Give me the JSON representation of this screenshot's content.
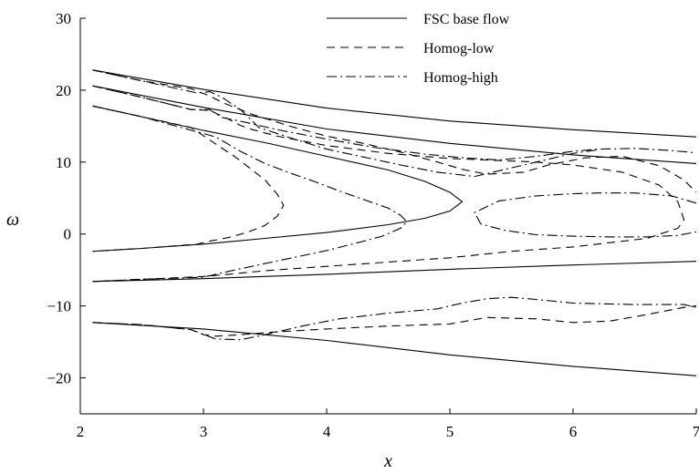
{
  "chart_data": {
    "type": "line",
    "xlabel": "x",
    "ylabel": "ω",
    "xlim": [
      2,
      7
    ],
    "ylim": [
      -25,
      30
    ],
    "xticks": [
      2,
      3,
      4,
      5,
      6,
      7
    ],
    "yticks": [
      -20,
      -10,
      0,
      10,
      20,
      30
    ],
    "grid": false,
    "legend_position": "top-right",
    "series": [
      {
        "name": "FSC base flow",
        "style": "solid",
        "curves": [
          {
            "x": [
              2.1,
              3.0,
              4.0,
              5.0,
              6.0,
              7.0
            ],
            "y": [
              22.8,
              20.1,
              17.5,
              15.7,
              14.5,
              13.5
            ]
          },
          {
            "x": [
              2.1,
              3.0,
              4.0,
              5.0,
              6.0,
              7.0
            ],
            "y": [
              20.6,
              17.6,
              14.6,
              12.6,
              11.0,
              9.8
            ]
          },
          {
            "x": [
              2.1,
              2.5,
              3.0,
              3.5,
              4.0,
              4.5,
              4.8,
              5.0,
              5.1,
              5.0,
              4.8,
              4.5,
              4.0,
              3.5,
              3.0,
              2.5,
              2.1
            ],
            "y": [
              17.8,
              16.3,
              14.4,
              12.7,
              10.8,
              8.9,
              7.3,
              5.8,
              4.5,
              3.2,
              2.2,
              1.3,
              0.2,
              -0.6,
              -1.4,
              -2.0,
              -2.4
            ]
          },
          {
            "x": [
              2.1,
              3.0,
              4.0,
              5.0,
              6.0,
              7.0
            ],
            "y": [
              -6.6,
              -6.2,
              -5.6,
              -4.9,
              -4.3,
              -3.8
            ]
          },
          {
            "x": [
              2.1,
              3.0,
              4.0,
              5.0,
              6.0,
              7.0
            ],
            "y": [
              -12.3,
              -13.2,
              -14.8,
              -16.8,
              -18.4,
              -19.7
            ]
          }
        ]
      },
      {
        "name": "Homog-low",
        "style": "dashed",
        "curves": [
          {
            "x": [
              2.1,
              2.5,
              2.9,
              3.1,
              3.25,
              3.35,
              3.5,
              3.6,
              3.65,
              3.6,
              3.5,
              3.35,
              3.2,
              3.05,
              2.95,
              2.5,
              2.1
            ],
            "y": [
              17.8,
              16.3,
              14.8,
              12.5,
              10.8,
              9.5,
              7.5,
              5.5,
              4.0,
              2.5,
              1.2,
              0.2,
              -0.5,
              -1.0,
              -1.4,
              -2.0,
              -2.4
            ]
          },
          {
            "x": [
              2.1,
              2.5,
              2.9,
              3.05,
              3.2,
              3.3,
              3.4,
              3.6,
              4.0,
              4.5,
              5.0,
              5.3,
              5.7,
              6.0,
              6.4,
              6.7,
              6.85,
              6.9,
              6.85,
              6.6,
              6.0,
              5.5,
              5.0,
              4.5,
              4.0,
              3.5,
              3.2,
              3.0,
              2.5,
              2.1
            ],
            "y": [
              20.6,
              19.0,
              17.3,
              17.2,
              16.0,
              15.1,
              14.5,
              13.6,
              12.3,
              11.2,
              10.5,
              10.3,
              10.0,
              9.6,
              8.6,
              6.8,
              4.5,
              2.0,
              0.8,
              -0.6,
              -1.8,
              -2.4,
              -3.3,
              -3.9,
              -4.5,
              -5.1,
              -5.6,
              -5.9,
              -6.3,
              -6.6
            ]
          },
          {
            "x": [
              2.1,
              2.5,
              2.9,
              3.05,
              3.15,
              3.4,
              3.7,
              4.0,
              4.3,
              4.6,
              4.9,
              5.1,
              5.3,
              5.6,
              5.8,
              6.1,
              6.4,
              6.7,
              6.9,
              7.0
            ],
            "y": [
              22.8,
              21.3,
              20.2,
              19.2,
              18.3,
              16.6,
              15.0,
              13.6,
              12.6,
              11.4,
              10.0,
              9.0,
              8.3,
              8.6,
              9.6,
              10.6,
              10.8,
              9.5,
              7.5,
              5.8
            ]
          },
          {
            "x": [
              2.1,
              2.5,
              2.9,
              3.0,
              3.1,
              3.3,
              3.6,
              4.0,
              4.5,
              5.0,
              5.3,
              5.7,
              6.0,
              6.3,
              6.6,
              6.9,
              7.0
            ],
            "y": [
              -12.3,
              -12.6,
              -13.3,
              -14.0,
              -14.2,
              -14.0,
              -13.6,
              -13.2,
              -12.8,
              -12.5,
              -11.6,
              -11.8,
              -12.3,
              -12.1,
              -11.2,
              -10.2,
              -10.0
            ]
          }
        ]
      },
      {
        "name": "Homog-high",
        "style": "dash-dot",
        "curves": [
          {
            "x": [
              2.1,
              2.5,
              2.95,
              3.1,
              3.3,
              3.5,
              3.7,
              3.9,
              4.1,
              4.3,
              4.5,
              4.6,
              4.65,
              4.6,
              4.45,
              4.3,
              4.0,
              3.5,
              3.2,
              3.0,
              2.5,
              2.1
            ],
            "y": [
              17.8,
              16.3,
              14.2,
              13.5,
              11.5,
              9.8,
              8.5,
              7.3,
              6.0,
              4.8,
              3.6,
              2.6,
              1.7,
              0.8,
              -0.3,
              -1.0,
              -2.3,
              -4.1,
              -5.2,
              -6.0,
              -6.3,
              -6.6
            ]
          },
          {
            "x": [
              2.1,
              2.5,
              2.9,
              3.05,
              3.15,
              3.35,
              3.6,
              4.0,
              4.4,
              4.8,
              5.1,
              5.4,
              5.7,
              6.0,
              6.2,
              6.5,
              6.8,
              7.0
            ],
            "y": [
              20.6,
              19.0,
              17.3,
              17.3,
              16.2,
              15.5,
              14.5,
              13.2,
              12.0,
              11.1,
              10.6,
              10.3,
              10.8,
              11.5,
              11.8,
              11.9,
              11.6,
              11.3
            ]
          },
          {
            "x": [
              2.1,
              2.5,
              2.95,
              3.05,
              3.15,
              3.3,
              3.45,
              3.7,
              4.0,
              4.3,
              4.6,
              4.9,
              5.2,
              5.6,
              6.0,
              6.2
            ],
            "y": [
              22.8,
              21.3,
              19.6,
              19.8,
              19.0,
              17.3,
              14.8,
              13.4,
              11.8,
              10.7,
              9.6,
              8.6,
              8.0,
              9.6,
              11.2,
              11.7
            ]
          },
          {
            "x": [
              7.0,
              6.8,
              6.5,
              6.2,
              6.0,
              5.7,
              5.4,
              5.2,
              5.25,
              5.45,
              5.7,
              6.0,
              6.3,
              6.6,
              6.85,
              7.0
            ],
            "y": [
              4.3,
              5.3,
              5.7,
              5.7,
              5.6,
              5.3,
              4.6,
              3.0,
              1.4,
              0.5,
              -0.1,
              -0.3,
              -0.4,
              -0.4,
              -0.2,
              0.3
            ]
          },
          {
            "x": [
              2.1,
              2.5,
              2.9,
              3.1,
              3.3,
              3.5,
              3.8,
              4.1,
              4.5,
              4.9,
              5.1,
              5.3,
              5.5,
              5.7,
              6.0,
              6.5,
              6.9,
              7.0
            ],
            "y": [
              -12.3,
              -12.6,
              -13.3,
              -14.6,
              -14.7,
              -14.0,
              -12.8,
              -11.8,
              -11.0,
              -10.4,
              -9.6,
              -9.0,
              -8.8,
              -9.1,
              -9.6,
              -9.8,
              -9.8,
              -10.2
            ]
          }
        ]
      }
    ]
  }
}
